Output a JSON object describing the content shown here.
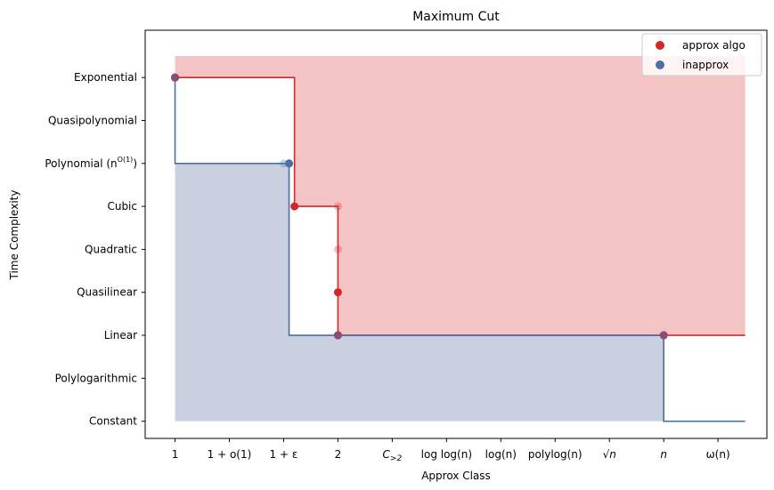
{
  "chart_data": {
    "type": "scatter",
    "title": "Maximum Cut",
    "xlabel": "Approx Class",
    "ylabel": "Time Complexity",
    "x_categories": [
      "1",
      "1+o(1)",
      "1+ε",
      "2",
      "C>2",
      "log log(n)",
      "log(n)",
      "polylog(n)",
      "√n",
      "n",
      "ω(n)"
    ],
    "y_categories": [
      "Constant",
      "Polylogarithmic",
      "Linear",
      "Quasilinear",
      "Quadratic",
      "Cubic",
      "Polynomial (n^O(1))",
      "Quasipolynomial",
      "Exponential"
    ],
    "y_tick_labels": [
      {
        "text": "Constant"
      },
      {
        "text": "Polylogarithmic"
      },
      {
        "text": "Linear"
      },
      {
        "text": "Quasilinear"
      },
      {
        "text": "Quadratic"
      },
      {
        "text": "Cubic"
      },
      {
        "text": "Polynomial (n",
        "sup": "O(1)",
        "tail": ")"
      },
      {
        "text": "Quasipolynomial"
      },
      {
        "text": "Exponential"
      }
    ],
    "x_tick_labels": [
      {
        "text": "1",
        "italic": false
      },
      {
        "text": "1 + o(1)",
        "italic": false
      },
      {
        "text": "1 + ε",
        "italic": false
      },
      {
        "text": "2",
        "italic": false
      },
      {
        "text": "C",
        "sub": ">2",
        "italic": true
      },
      {
        "text": "log log(n)",
        "italic": false
      },
      {
        "text": "log(n)",
        "italic": false
      },
      {
        "text": "polylog(n)",
        "italic": false
      },
      {
        "text": "√n",
        "italic": true
      },
      {
        "text": "n",
        "italic": true
      },
      {
        "text": "ω(n)",
        "italic": false
      }
    ],
    "series": [
      {
        "name": "approx algo",
        "color": "#d62728",
        "points": [
          {
            "x": 0,
            "y": 8,
            "alpha": 1.0
          },
          {
            "x": 2.2,
            "y": 5,
            "alpha": 1.0
          },
          {
            "x": 3,
            "y": 5,
            "alpha": 0.3
          },
          {
            "x": 3,
            "y": 4,
            "alpha": 0.3
          },
          {
            "x": 3,
            "y": 3,
            "alpha": 1.0
          },
          {
            "x": 3,
            "y": 2,
            "alpha": 1.0
          },
          {
            "x": 2.1,
            "y": 6,
            "alpha": 0.3
          },
          {
            "x": 9,
            "y": 2,
            "alpha": 1.0
          }
        ],
        "frontier": [
          [
            0,
            8
          ],
          [
            2.2,
            8
          ],
          [
            2.2,
            5
          ],
          [
            3,
            5
          ],
          [
            3,
            2
          ],
          [
            10.5,
            2
          ]
        ],
        "region_top": 8.5
      },
      {
        "name": "inapprox",
        "color": "#4c6fa5",
        "points": [
          {
            "x": 0,
            "y": 8,
            "alpha": 1.0
          },
          {
            "x": 2.1,
            "y": 6,
            "alpha": 1.0
          },
          {
            "x": 2.0,
            "y": 6,
            "alpha": 0.3
          },
          {
            "x": 3,
            "y": 2,
            "alpha": 1.0
          },
          {
            "x": 9,
            "y": 2,
            "alpha": 1.0
          }
        ],
        "frontier": [
          [
            0,
            8
          ],
          [
            0,
            6
          ],
          [
            2.1,
            6
          ],
          [
            2.1,
            2
          ],
          [
            9,
            2
          ],
          [
            9,
            0
          ],
          [
            10.5,
            0
          ]
        ],
        "region_bottom": 0
      }
    ],
    "xlim": [
      -0.55,
      10.9
    ],
    "ylim": [
      -0.4,
      9.1
    ],
    "grid": false,
    "legend_position": "top-right"
  }
}
